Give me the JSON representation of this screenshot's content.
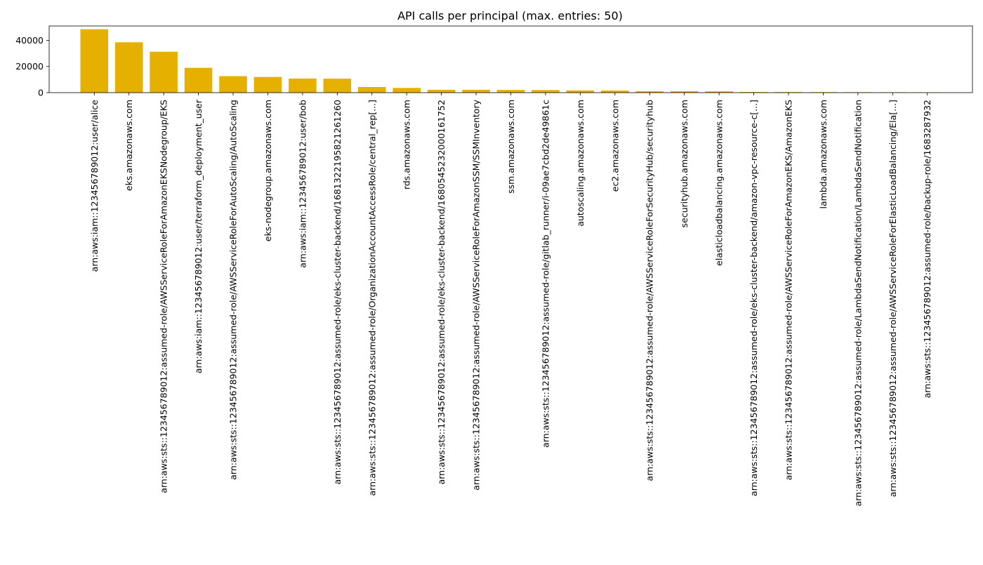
{
  "chart_data": {
    "type": "bar",
    "title": "API calls per principal (max. entries: 50)",
    "xlabel": "",
    "ylabel": "",
    "ylim": [
      0,
      51000
    ],
    "yticks": [
      0,
      20000,
      40000
    ],
    "ytick_labels": [
      "0",
      "20000",
      "40000"
    ],
    "grid": false,
    "legend": "none",
    "bar_color": "#E6B000",
    "categories": [
      "arn:aws:iam::123456789012:user/alice",
      "eks.amazonaws.com",
      "arn:aws:sts::123456789012:assumed-role/AWSServiceRoleForAmazonEKSNodegroup/EKS",
      "arn:aws:iam::123456789012:user/terraform_deployment_user",
      "arn:aws:sts::123456789012:assumed-role/AWSServiceRoleForAutoScaling/AutoScaling",
      "eks-nodegroup.amazonaws.com",
      "arn:aws:iam::123456789012:user/bob",
      "arn:aws:sts::123456789012:assumed-role/eks-cluster-backend/1681322195821261260",
      "arn:aws:sts::123456789012:assumed-role/OrganizationAccountAccessRole/central_rep[...]",
      "rds.amazonaws.com",
      "arn:aws:sts::123456789012:assumed-role/eks-cluster-backend/1680545232000161752",
      "arn:aws:sts::123456789012:assumed-role/AWSServiceRoleForAmazonSSM/SSMInventory",
      "ssm.amazonaws.com",
      "arn:aws:sts::123456789012:assumed-role/gitlab_runner/i-09ae7cbd2de49861c",
      "autoscaling.amazonaws.com",
      "ec2.amazonaws.com",
      "arn:aws:sts::123456789012:assumed-role/AWSServiceRoleForSecurityHub/securityhub",
      "securityhub.amazonaws.com",
      "elasticloadbalancing.amazonaws.com",
      "arn:aws:sts::123456789012:assumed-role/eks-cluster-backend/amazon-vpc-resource-c[...]",
      "arn:aws:sts::123456789012:assumed-role/AWSServiceRoleForAmazonEKS/AmazonEKS",
      "lambda.amazonaws.com",
      "arn:aws:sts::123456789012:assumed-role/LambdaSendNotification/LambdaSendNotification",
      "arn:aws:sts::123456789012:assumed-role/AWSServiceRoleForElasticLoadBalancing/Ela[...]",
      "arn:aws:sts::123456789012:assumed-role/backup-role/1683287932"
    ],
    "values": [
      48500,
      38500,
      31300,
      19000,
      12600,
      12000,
      10800,
      10700,
      4300,
      3600,
      2200,
      2200,
      2100,
      2000,
      1700,
      1600,
      1100,
      1100,
      1000,
      500,
      450,
      400,
      350,
      300,
      250
    ]
  }
}
